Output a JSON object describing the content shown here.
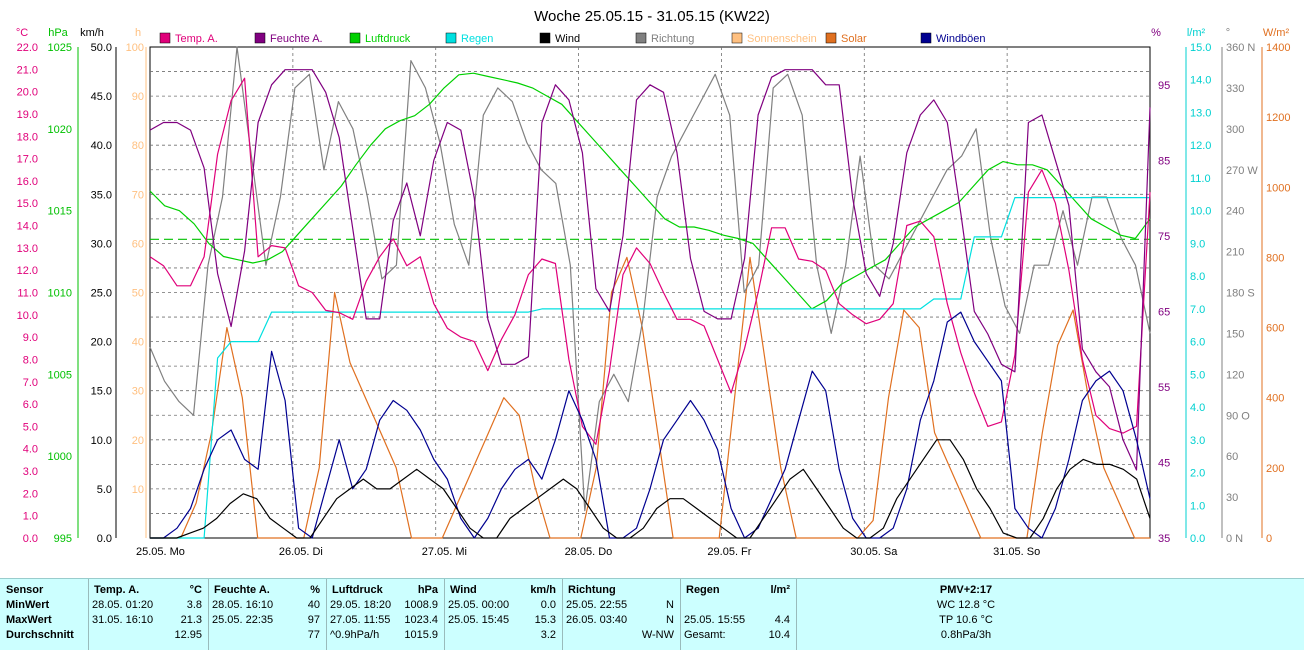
{
  "chart_data": {
    "type": "line",
    "title": "Woche 25.05.15 - 31.05.15 (KW22)",
    "x_ticks": [
      "25.05. Mo",
      "26.05. Di",
      "27.05. Mi",
      "28.05. Do",
      "29.05. Fr",
      "30.05. Sa",
      "31.05. So"
    ],
    "legend": [
      {
        "name": "Temp. A.",
        "color": "#e0007a"
      },
      {
        "name": "Feuchte A.",
        "color": "#800080"
      },
      {
        "name": "Luftdruck",
        "color": "#00d000"
      },
      {
        "name": "Regen",
        "color": "#00e0e0"
      },
      {
        "name": "Wind",
        "color": "#000000"
      },
      {
        "name": "Richtung",
        "color": "#808080"
      },
      {
        "name": "Sonnenschein",
        "color": "#ffc080"
      },
      {
        "name": "Solar",
        "color": "#e07020"
      },
      {
        "name": "Windböen",
        "color": "#000090"
      }
    ],
    "axes": {
      "temp": {
        "unit": "°C",
        "color": "#e0007a",
        "min": 0,
        "max": 22,
        "ticks": [
          "0.0",
          "1.0",
          "2.0",
          "3.0",
          "4.0",
          "5.0",
          "6.0",
          "7.0",
          "8.0",
          "9.0",
          "10.0",
          "11.0",
          "12.0",
          "13.0",
          "14.0",
          "15.0",
          "16.0",
          "17.0",
          "18.0",
          "19.0",
          "20.0",
          "21.0",
          "22.0"
        ]
      },
      "pressure": {
        "unit": "hPa",
        "color": "#00c000",
        "min": 995,
        "max": 1025,
        "ticks": [
          "995",
          "1000",
          "1005",
          "1010",
          "1015",
          "1020",
          "1025"
        ]
      },
      "wind": {
        "unit": "km/h",
        "color": "#000000",
        "min": 0,
        "max": 50,
        "ticks": [
          "0.0",
          "5.0",
          "10.0",
          "15.0",
          "20.0",
          "25.0",
          "30.0",
          "35.0",
          "40.0",
          "45.0",
          "50.0"
        ]
      },
      "sun": {
        "unit": "h",
        "color": "#ffc080",
        "ticks": [
          "10",
          "20",
          "30",
          "40",
          "50",
          "60",
          "70",
          "80",
          "90",
          "100"
        ]
      },
      "humidity": {
        "unit": "%",
        "color": "#800080",
        "min": 35,
        "max": 100,
        "ticks": [
          "35",
          "45",
          "55",
          "65",
          "75",
          "85",
          "95"
        ]
      },
      "rain": {
        "unit": "l/m²",
        "color": "#00d0d0",
        "min": 0,
        "max": 15,
        "ticks": [
          "0.0",
          "1.0",
          "2.0",
          "3.0",
          "4.0",
          "5.0",
          "6.0",
          "7.0",
          "8.0",
          "9.0",
          "10.0",
          "11.0",
          "12.0",
          "13.0",
          "14.0",
          "15.0"
        ]
      },
      "direction": {
        "unit": "°",
        "color": "#808080",
        "min": 0,
        "max": 360,
        "ticks": [
          "0  N",
          "30",
          "60",
          "90  O",
          "120",
          "150",
          "180  S",
          "210",
          "240",
          "270  W",
          "300",
          "330",
          "360  N"
        ]
      },
      "solar": {
        "unit": "W/m²",
        "color": "#e07020",
        "min": 0,
        "max": 1400,
        "ticks": [
          "0",
          "200",
          "400",
          "600",
          "800",
          "1000",
          "1200",
          "1400"
        ]
      }
    },
    "reference_line": {
      "axis": "pressure",
      "value": 1013.25
    },
    "series": [
      {
        "name": "Temp. A.",
        "axis": "temp",
        "values": [
          12.6,
          12.2,
          11.3,
          11.3,
          12.6,
          17.2,
          19.6,
          20.6,
          12.6,
          13.1,
          13.0,
          11.3,
          11.0,
          10.2,
          10.1,
          9.8,
          11.5,
          12.6,
          13.4,
          12.2,
          12.6,
          10.5,
          9.4,
          9.0,
          8.8,
          7.5,
          8.9,
          10.0,
          11.8,
          12.5,
          12.3,
          8.0,
          5.0,
          4.2,
          7.5,
          11.8,
          13.0,
          12.3,
          11.0,
          9.8,
          9.8,
          9.5,
          8.0,
          6.5,
          8.5,
          11.0,
          13.9,
          13.9,
          12.5,
          12.4,
          12.0,
          10.5,
          10.0,
          9.6,
          9.8,
          10.5,
          14.0,
          14.2,
          13.5,
          10.5,
          8.3,
          6.5,
          5.0,
          5.2,
          8.2,
          15.5,
          16.5,
          15.0,
          12.0,
          8.0,
          5.5,
          4.9,
          4.7,
          5.0,
          15.5
        ]
      },
      {
        "name": "Feuchte A.",
        "axis": "humidity",
        "values": [
          89,
          90,
          90,
          89,
          84,
          70,
          63,
          73,
          90,
          95,
          97,
          97,
          97,
          94,
          88,
          76,
          64,
          64,
          77,
          82,
          75,
          85,
          90,
          89,
          80,
          64,
          58,
          58,
          59,
          90,
          95,
          93,
          86,
          68,
          65,
          75,
          93,
          95,
          94,
          86,
          72,
          65,
          64,
          64,
          72,
          91,
          96,
          97,
          97,
          97,
          95,
          95,
          80,
          70,
          67,
          74,
          86,
          91,
          93,
          90,
          78,
          65,
          62,
          58,
          57,
          90,
          91,
          85,
          79,
          60,
          57,
          55,
          48,
          44,
          92
        ]
      },
      {
        "name": "Luftdruck",
        "axis": "pressure",
        "values": [
          1016.2,
          1015.3,
          1015.0,
          1014.2,
          1013.0,
          1012.2,
          1012.0,
          1011.8,
          1012.0,
          1012.5,
          1013.5,
          1014.5,
          1015.5,
          1016.5,
          1017.8,
          1019.0,
          1020.0,
          1020.5,
          1020.8,
          1021.5,
          1022.5,
          1023.3,
          1023.4,
          1023.2,
          1023.0,
          1022.8,
          1022.5,
          1022.0,
          1021.5,
          1020.5,
          1019.5,
          1018.5,
          1017.5,
          1016.5,
          1015.5,
          1014.5,
          1014.0,
          1014.0,
          1013.8,
          1013.5,
          1013.3,
          1013.0,
          1012.0,
          1011.0,
          1010.0,
          1009.0,
          1009.5,
          1010.5,
          1011.0,
          1011.5,
          1012.0,
          1013.0,
          1014.0,
          1014.5,
          1015.0,
          1015.5,
          1016.5,
          1017.5,
          1018.0,
          1017.8,
          1017.8,
          1017.5,
          1016.5,
          1015.5,
          1014.5,
          1014.0,
          1013.5,
          1013.3,
          1014.5
        ]
      },
      {
        "name": "Regen",
        "axis": "rain",
        "values": [
          0,
          0,
          0,
          0,
          0,
          5.5,
          6.0,
          6.0,
          6.0,
          6.9,
          6.9,
          6.9,
          6.9,
          6.9,
          6.9,
          6.9,
          6.9,
          6.9,
          6.9,
          6.9,
          6.9,
          6.9,
          6.9,
          6.9,
          6.9,
          6.9,
          6.9,
          6.9,
          6.9,
          7.0,
          7.0,
          7.0,
          7.0,
          7.0,
          7.0,
          7.0,
          7.0,
          7.0,
          7.0,
          7.0,
          7.0,
          7.0,
          7.0,
          7.0,
          7.0,
          7.0,
          7.0,
          7.0,
          7.0,
          7.0,
          7.0,
          7.0,
          7.0,
          7.0,
          7.0,
          7.0,
          7.0,
          7.0,
          7.3,
          7.3,
          7.3,
          9.2,
          9.2,
          9.2,
          10.4,
          10.4,
          10.4,
          10.4,
          10.4,
          10.4,
          10.4,
          10.4,
          10.4,
          10.4,
          10.4
        ]
      },
      {
        "name": "Wind",
        "axis": "wind",
        "values": [
          0,
          0,
          0,
          0.5,
          1,
          2,
          3.5,
          4.5,
          4,
          2,
          1,
          0,
          0,
          2,
          4,
          5,
          6,
          5,
          5,
          6,
          7,
          6,
          5,
          3,
          1,
          0,
          0,
          2,
          3,
          4,
          5,
          6,
          5,
          3,
          1,
          0,
          0,
          1,
          3,
          4,
          4,
          3,
          2,
          1,
          0,
          0,
          2,
          4,
          6,
          7,
          5,
          3,
          1,
          0,
          0,
          1,
          4,
          6,
          8,
          10,
          10,
          8,
          5,
          3,
          0.5,
          0,
          0,
          2,
          5,
          7,
          8,
          7.5,
          7.5,
          7,
          6,
          2
        ]
      },
      {
        "name": "Richtung",
        "axis": "direction",
        "values": [
          140,
          115,
          100,
          90,
          200,
          250,
          360,
          280,
          200,
          250,
          330,
          340,
          270,
          320,
          300,
          250,
          190,
          200,
          350,
          330,
          290,
          230,
          200,
          310,
          330,
          320,
          290,
          270,
          260,
          200,
          20,
          100,
          120,
          100,
          160,
          250,
          280,
          300,
          320,
          340,
          310,
          180,
          200,
          330,
          340,
          310,
          200,
          150,
          200,
          280,
          200,
          190,
          210,
          230,
          250,
          270,
          280,
          300,
          220,
          170,
          150,
          200,
          200,
          240,
          200,
          250,
          250,
          220,
          200,
          150
        ]
      },
      {
        "name": "Solar",
        "axis": "solar",
        "values": [
          0,
          0,
          0,
          100,
          300,
          600,
          400,
          0,
          0,
          0,
          0,
          200,
          700,
          500,
          400,
          300,
          200,
          0,
          0,
          0,
          100,
          200,
          300,
          400,
          350,
          150,
          0,
          0,
          0,
          200,
          700,
          800,
          600,
          300,
          0,
          0,
          0,
          0,
          400,
          800,
          500,
          200,
          0,
          0,
          0,
          0,
          0,
          50,
          400,
          650,
          600,
          300,
          200,
          100,
          0,
          0,
          0,
          0,
          300,
          550,
          650,
          400,
          200,
          100,
          0,
          0
        ]
      },
      {
        "name": "Windböen",
        "axis": "wind",
        "values": [
          0,
          0,
          1,
          3,
          7,
          10,
          11,
          8,
          7,
          19,
          14,
          1,
          0,
          5,
          10,
          5,
          7,
          12,
          14,
          13,
          11,
          8,
          6,
          2,
          0,
          2,
          5,
          7,
          8,
          6,
          10,
          15,
          12,
          8,
          0,
          0,
          1,
          5,
          10,
          12,
          14,
          12,
          9,
          3,
          0,
          1,
          4,
          7,
          12,
          17,
          15,
          7,
          2,
          0,
          0,
          1,
          5,
          12,
          16,
          22,
          23,
          20,
          18,
          16,
          3,
          1,
          0,
          3,
          8,
          14,
          16,
          17,
          15,
          10,
          4
        ]
      }
    ]
  },
  "stats": {
    "columns": [
      {
        "title": "Sensor",
        "unit": "",
        "rows": [
          "MinWert",
          "MaxWert",
          "Durchschnitt"
        ],
        "dates": [
          "",
          "",
          ""
        ],
        "values": [
          "",
          "",
          ""
        ]
      },
      {
        "title": "Temp. A.",
        "unit": "°C",
        "rows": [
          "",
          "",
          ""
        ],
        "dates": [
          "28.05.  01:20",
          "31.05.  16:10",
          ""
        ],
        "values": [
          "3.8",
          "21.3",
          "12.95"
        ]
      },
      {
        "title": "Feuchte A.",
        "unit": "%",
        "rows": [
          "",
          "",
          ""
        ],
        "dates": [
          "28.05.  16:10",
          "25.05.  22:35",
          ""
        ],
        "values": [
          "40",
          "97",
          "77"
        ]
      },
      {
        "title": "Luftdruck",
        "unit": "hPa",
        "rows": [
          "",
          "",
          ""
        ],
        "dates": [
          "29.05.  18:20",
          "27.05.  11:55",
          "^0.9hPa/h"
        ],
        "values": [
          "1008.9",
          "1023.4",
          "1015.9"
        ]
      },
      {
        "title": "Wind",
        "unit": "km/h",
        "rows": [
          "",
          "",
          ""
        ],
        "dates": [
          "25.05.  00:00",
          "25.05.  15:45",
          ""
        ],
        "values": [
          "0.0",
          "15.3",
          "3.2"
        ]
      },
      {
        "title": "Richtung",
        "unit": "",
        "rows": [
          "",
          "",
          ""
        ],
        "dates": [
          "25.05.  22:55",
          "26.05.  03:40",
          ""
        ],
        "values": [
          "N",
          "N",
          "W-NW"
        ]
      },
      {
        "title": "Regen",
        "unit": "l/m²",
        "rows": [
          "",
          "",
          ""
        ],
        "dates": [
          "",
          "25.05.  15:55",
          "Gesamt:"
        ],
        "values": [
          "",
          "4.4",
          "10.4"
        ]
      },
      {
        "title": "PMV+2:17",
        "unit": "",
        "rows": [
          "WC 12.8 °C",
          "TP 10.6 °C",
          "0.8hPa/3h"
        ],
        "dates": [
          "",
          "",
          ""
        ],
        "values": [
          "",
          "",
          ""
        ]
      }
    ]
  }
}
